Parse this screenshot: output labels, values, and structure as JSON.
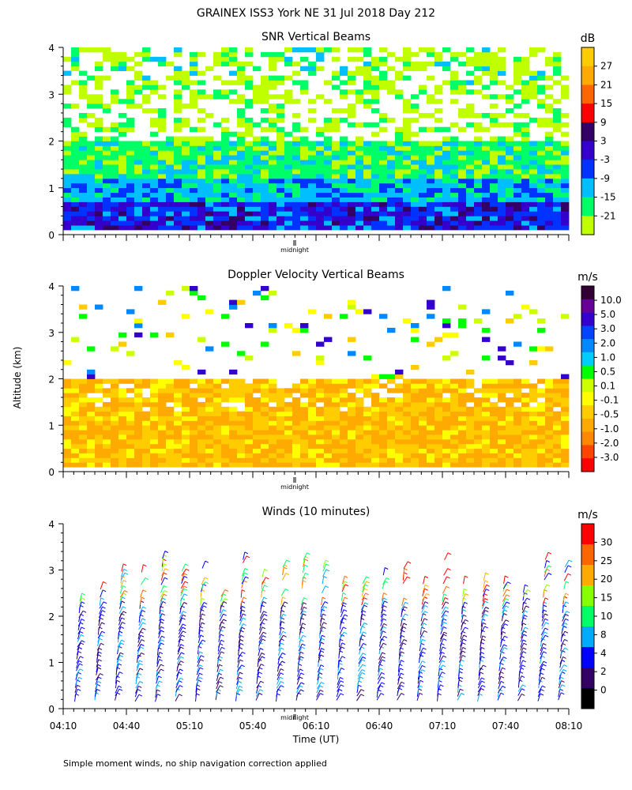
{
  "title": "GRAINEX ISS3 York NE  31 Jul 2018 Day 212",
  "shared_ylabel": "Altitude (km)",
  "midnight_label": "midnight",
  "footer_note": "Simple moment winds, no ship navigation correction applied",
  "colors": {
    "bg": "#ffffff",
    "snr_ramp": [
      "#bfff00",
      "#00ff66",
      "#00bfff",
      "#0033ff",
      "#3300cc",
      "#330066",
      "#ff0000",
      "#ff6600",
      "#ffaa00",
      "#ffcc00"
    ],
    "vel_ramp": [
      "#ff0000",
      "#ff4400",
      "#ff8800",
      "#ffaa00",
      "#ffcc00",
      "#ffff00",
      "#ccff00",
      "#00ff00",
      "#00ccff",
      "#0088ff",
      "#0044ff",
      "#3300cc",
      "#660099",
      "#330033"
    ],
    "wind_ramp": [
      "#000000",
      "#330066",
      "#0000ff",
      "#00aaff",
      "#00ff66",
      "#88ff00",
      "#ffaa00",
      "#ff6600",
      "#ff0000"
    ]
  },
  "chart_data": [
    {
      "type": "heatmap",
      "title": "SNR Vertical Beams",
      "xlabel": "",
      "ylabel": "Altitude (km)",
      "ylim": [
        0,
        4
      ],
      "yticks": [
        "0",
        "1",
        "2",
        "3",
        "4"
      ],
      "x_range_ut": [
        "04:10",
        "08:10"
      ],
      "colorbar": {
        "unit": "dB",
        "ticks": [
          "27",
          "21",
          "15",
          "9",
          "3",
          "-3",
          "-9",
          "-15",
          "-21"
        ]
      }
    },
    {
      "type": "heatmap",
      "title": "Doppler Velocity Vertical Beams",
      "xlabel": "",
      "ylabel": "Altitude (km)",
      "ylim": [
        0,
        4
      ],
      "yticks": [
        "0",
        "1",
        "2",
        "3",
        "4"
      ],
      "x_range_ut": [
        "04:10",
        "08:10"
      ],
      "colorbar": {
        "unit": "m/s",
        "ticks": [
          "10.0",
          "5.0",
          "3.0",
          "2.0",
          "1.0",
          "0.5",
          "0.1",
          "-0.1",
          "-0.5",
          "-1.0",
          "-2.0",
          "-3.0"
        ]
      }
    },
    {
      "type": "scatter",
      "title": "Winds (10 minutes)",
      "xlabel": "Time (UT)",
      "ylabel": "Altitude (km)",
      "ylim": [
        0,
        4
      ],
      "yticks": [
        "0",
        "1",
        "2",
        "3",
        "4"
      ],
      "xticks": [
        "04:10",
        "04:40",
        "05:10",
        "05:40",
        "06:10",
        "06:40",
        "07:10",
        "07:40",
        "08:10"
      ],
      "colorbar": {
        "unit": "m/s",
        "ticks": [
          "30",
          "25",
          "20",
          "15",
          "10",
          "8",
          "4",
          "2",
          "0"
        ]
      }
    }
  ]
}
